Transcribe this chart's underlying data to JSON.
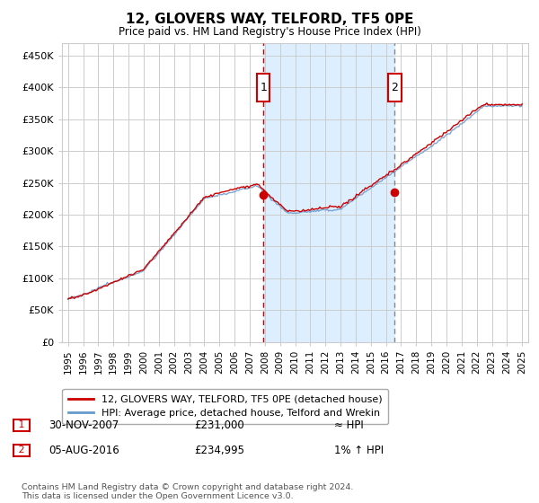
{
  "title": "12, GLOVERS WAY, TELFORD, TF5 0PE",
  "subtitle": "Price paid vs. HM Land Registry's House Price Index (HPI)",
  "ylim": [
    0,
    470000
  ],
  "yticks": [
    0,
    50000,
    100000,
    150000,
    200000,
    250000,
    300000,
    350000,
    400000,
    450000
  ],
  "ytick_labels": [
    "£0",
    "£50K",
    "£100K",
    "£150K",
    "£200K",
    "£250K",
    "£300K",
    "£350K",
    "£400K",
    "£450K"
  ],
  "xlim_start": 1994.6,
  "xlim_end": 2025.4,
  "marker1_x": 2007.917,
  "marker1_y": 231000,
  "marker1_label": "1",
  "marker1_date": "30-NOV-2007",
  "marker1_price": "£231,000",
  "marker1_hpi": "≈ HPI",
  "marker2_x": 2016.583,
  "marker2_y": 234995,
  "marker2_label": "2",
  "marker2_date": "05-AUG-2016",
  "marker2_price": "£234,995",
  "marker2_hpi": "1% ↑ HPI",
  "legend_line1": "12, GLOVERS WAY, TELFORD, TF5 0PE (detached house)",
  "legend_line2": "HPI: Average price, detached house, Telford and Wrekin",
  "footer": "Contains HM Land Registry data © Crown copyright and database right 2024.\nThis data is licensed under the Open Government Licence v3.0.",
  "line_color": "#cc0000",
  "hpi_color": "#6699cc",
  "shade_color": "#ddeeff",
  "bg_color": "#ffffff",
  "grid_color": "#cccccc",
  "marker2_vline_color": "#888888"
}
